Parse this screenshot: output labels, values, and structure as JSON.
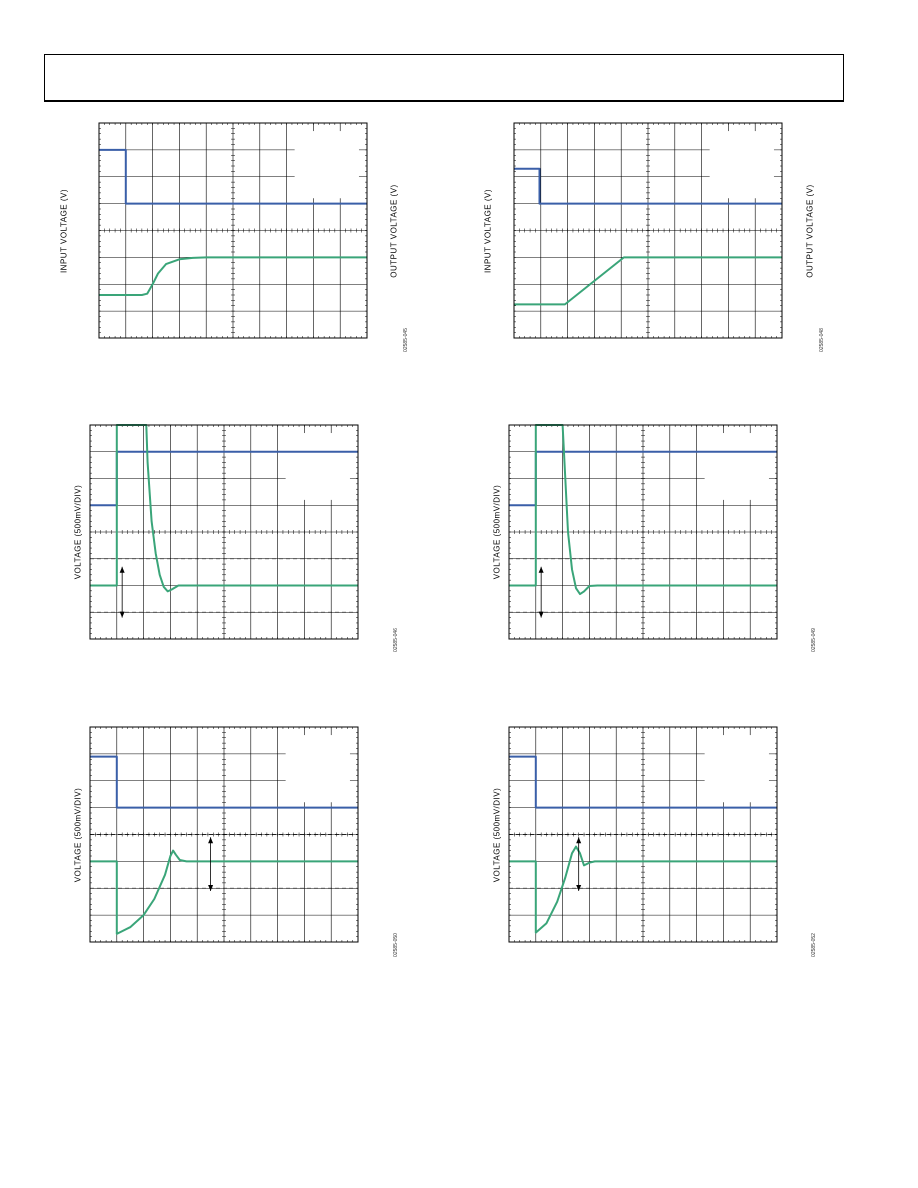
{
  "page": {
    "header_text": ""
  },
  "chart_data": [
    {
      "id": "fig-1",
      "type": "line",
      "kind": "dual",
      "ylabel": "INPUT VOLTAGE (V)",
      "y2label": "OUTPUT VOLTAGE (V)",
      "figure_id": "02585-045",
      "grid": "on",
      "legend": "none",
      "xlim": [
        0,
        10
      ],
      "ylim": [
        0,
        8
      ],
      "series": [
        {
          "color": "#3a5fa8",
          "x": [
            0,
            1.0,
            1.0,
            10
          ],
          "y": [
            7.0,
            7.0,
            5.0,
            5.0
          ]
        },
        {
          "color": "#3aa579",
          "x": [
            0,
            1.6,
            1.8,
            2.0,
            2.2,
            2.5,
            3.0,
            3.5,
            4.0,
            10
          ],
          "y": [
            1.6,
            1.6,
            1.65,
            2.0,
            2.4,
            2.75,
            2.93,
            2.98,
            3.0,
            3.0
          ]
        }
      ]
    },
    {
      "id": "fig-2",
      "type": "line",
      "kind": "dual",
      "ylabel": "INPUT VOLTAGE (V)",
      "y2label": "OUTPUT VOLTAGE (V)",
      "figure_id": "02585-048",
      "grid": "on",
      "legend": "none",
      "xlim": [
        0,
        10
      ],
      "ylim": [
        0,
        8
      ],
      "series": [
        {
          "color": "#3a5fa8",
          "x": [
            0,
            0.95,
            0.95,
            10
          ],
          "y": [
            6.3,
            6.3,
            5.0,
            5.0
          ]
        },
        {
          "color": "#3aa579",
          "x": [
            0,
            1.9,
            4.1,
            10
          ],
          "y": [
            1.25,
            1.25,
            3.0,
            3.0
          ]
        }
      ]
    },
    {
      "id": "fig-3",
      "type": "line",
      "kind": "single",
      "ylabel": "VOLTAGE (500mV/DIV)",
      "figure_id": "02585-046",
      "grid": "on",
      "legend": "none",
      "xlim": [
        0,
        10
      ],
      "ylim": [
        0,
        8
      ],
      "dashed_levels": [
        3.0,
        1.0
      ],
      "arrow": {
        "x": 1.2,
        "y1": 2.7,
        "y2": 0.8
      },
      "series": [
        {
          "color": "#3a5fa8",
          "x": [
            0,
            1.0,
            1.0,
            10
          ],
          "y": [
            5.0,
            5.0,
            7.0,
            7.0
          ]
        },
        {
          "color": "#3aa579",
          "x": [
            0,
            1.0,
            1.0,
            2.1,
            2.15,
            2.3,
            2.45,
            2.6,
            2.75,
            2.9,
            3.05,
            3.3,
            3.6,
            10
          ],
          "y": [
            2.0,
            2.0,
            8.0,
            8.0,
            6.6,
            4.4,
            3.2,
            2.4,
            1.95,
            1.78,
            1.85,
            2.0,
            2.0,
            2.0
          ]
        }
      ]
    },
    {
      "id": "fig-4",
      "type": "line",
      "kind": "single",
      "ylabel": "VOLTAGE (500mV/DIV)",
      "figure_id": "02585-049",
      "grid": "on",
      "legend": "none",
      "xlim": [
        0,
        10
      ],
      "ylim": [
        0,
        8
      ],
      "dashed_levels": [
        3.0,
        1.0
      ],
      "arrow": {
        "x": 1.2,
        "y1": 2.7,
        "y2": 0.8
      },
      "series": [
        {
          "color": "#3a5fa8",
          "x": [
            0,
            1.0,
            1.0,
            10
          ],
          "y": [
            5.0,
            5.0,
            7.0,
            7.0
          ]
        },
        {
          "color": "#3aa579",
          "x": [
            0,
            1.0,
            1.0,
            2.0,
            2.1,
            2.2,
            2.35,
            2.5,
            2.65,
            2.8,
            3.0,
            3.3,
            10
          ],
          "y": [
            2.0,
            2.0,
            8.0,
            8.0,
            6.0,
            4.0,
            2.6,
            1.9,
            1.68,
            1.78,
            1.98,
            2.0,
            2.0
          ]
        }
      ]
    },
    {
      "id": "fig-5",
      "type": "line",
      "kind": "single",
      "ylabel": "VOLTAGE (500mV/DIV)",
      "figure_id": "02585-050",
      "grid": "on",
      "legend": "none",
      "xlim": [
        0,
        10
      ],
      "ylim": [
        0,
        8
      ],
      "dashed_levels": [
        4.0,
        2.0
      ],
      "arrow": {
        "x": 4.5,
        "y1": 3.9,
        "y2": 1.9
      },
      "series": [
        {
          "color": "#3a5fa8",
          "x": [
            0,
            1.0,
            1.0,
            10
          ],
          "y": [
            6.9,
            6.9,
            5.0,
            5.0
          ]
        },
        {
          "color": "#3aa579",
          "x": [
            0,
            1.0,
            1.0,
            1.5,
            2.0,
            2.4,
            2.8,
            3.0,
            3.1,
            3.2,
            3.35,
            3.6,
            4.0,
            10
          ],
          "y": [
            3.0,
            3.0,
            0.3,
            0.55,
            1.0,
            1.6,
            2.5,
            3.2,
            3.4,
            3.25,
            3.05,
            3.0,
            3.0,
            3.0
          ]
        }
      ]
    },
    {
      "id": "fig-6",
      "type": "line",
      "kind": "single",
      "ylabel": "VOLTAGE (500mV/DIV)",
      "figure_id": "02585-052",
      "grid": "on",
      "legend": "none",
      "xlim": [
        0,
        10
      ],
      "ylim": [
        0,
        8
      ],
      "dashed_levels": [
        4.0,
        2.0
      ],
      "arrow": {
        "x": 2.6,
        "y1": 3.9,
        "y2": 1.9
      },
      "series": [
        {
          "color": "#3a5fa8",
          "x": [
            0,
            1.0,
            1.0,
            10
          ],
          "y": [
            6.9,
            6.9,
            5.0,
            5.0
          ]
        },
        {
          "color": "#3aa579",
          "x": [
            0,
            1.0,
            1.0,
            1.4,
            1.8,
            2.1,
            2.35,
            2.5,
            2.65,
            2.8,
            3.0,
            3.2,
            10
          ],
          "y": [
            3.0,
            3.0,
            0.35,
            0.7,
            1.5,
            2.4,
            3.3,
            3.55,
            3.3,
            2.85,
            2.95,
            3.0,
            3.0
          ]
        }
      ]
    }
  ]
}
